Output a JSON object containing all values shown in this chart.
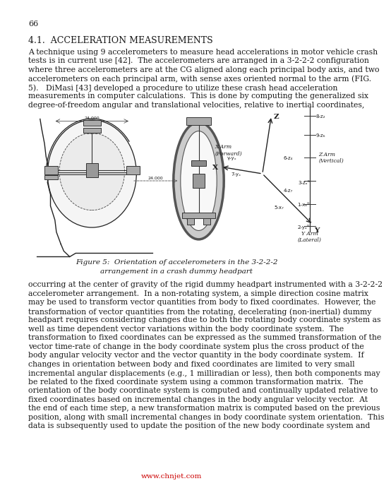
{
  "page_number": "66",
  "section_title": "4.1.  ACCELERATION MEASUREMENTS",
  "paragraph1_lines": [
    "A technique using 9 accelerometers to measure head accelerations in motor vehicle crash",
    "tests is in current use [42].  The accelerometers are arranged in a 3-2-2-2 configuration",
    "where three accelerometers are at the CG aligned along each principal body axis, and two",
    "accelerometers on each principal arm, with sense axes oriented normal to the arm (FIG.",
    "5).   DiMasi [43] developed a procedure to utilize these crash head acceleration",
    "measurements in computer calculations.  This is done by computing the generalized six",
    "degree-of-freedom angular and translational velocities, relative to inertial coordinates,"
  ],
  "figure_caption_line1": "Figure 5:  Orientation of accelerometers in the 3-2-2-2",
  "figure_caption_line2": "arrangement in a crash dummy headpart",
  "paragraph2_lines": [
    "occurring at the center of gravity of the rigid dummy headpart instrumented with a 3-2-2-2",
    "accelerometer arrangement.  In a non-rotating system, a simple direction cosine matrix",
    "may be used to transform vector quantities from body to fixed coordinates.  However, the",
    "transformation of vector quantities from the rotating, decelerating (non-inertial) dummy",
    "headpart requires considering changes due to both the rotating body coordinate system as",
    "well as time dependent vector variations within the body coordinate system.  The",
    "transformation to fixed coordinates can be expressed as the summed transformation of the",
    "vector time-rate of change in the body coordinate system plus the cross product of the",
    "body angular velocity vector and the vector quantity in the body coordinate system.  If",
    "changes in orientation between body and fixed coordinates are limited to very small",
    "incremental angular displacements (e.g., 1 milliradian or less), then both components may",
    "be related to the fixed coordinate system using a common transformation matrix.  The",
    "orientation of the body coordinate system is computed and continually updated relative to",
    "fixed coordinates based on incremental changes in the body angular velocity vector.  At",
    "the end of each time step, a new transformation matrix is computed based on the previous",
    "position, along with small incremental changes in body coordinate system orientation.  This",
    "data is subsequently used to update the position of the new body coordinate system and"
  ],
  "watermark": "www.chnjet.com",
  "bg_color": "#ffffff",
  "text_color": "#1a1a1a",
  "watermark_color": "#cc0000"
}
